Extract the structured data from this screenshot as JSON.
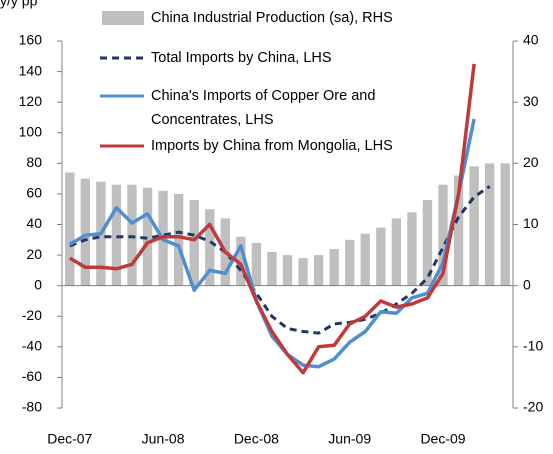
{
  "chart_data": {
    "type": "bar-line",
    "y_label": "y/y pp",
    "categories": [
      "Dec-07",
      null,
      null,
      null,
      null,
      null,
      "Jun-08",
      null,
      null,
      null,
      null,
      null,
      "Dec-08",
      null,
      null,
      null,
      null,
      null,
      "Jun-09",
      null,
      null,
      null,
      null,
      null,
      "Dec-09",
      null,
      null,
      null,
      null
    ],
    "series": [
      {
        "name": "China Industrial Production (sa), RHS",
        "kind": "bar",
        "axis": "y2",
        "color": "#bfbfbf",
        "values": [
          18.5,
          17.5,
          17,
          16.5,
          16.5,
          16,
          15.5,
          15,
          14,
          12.5,
          11,
          8,
          7,
          5.5,
          5,
          4.5,
          5,
          6,
          7.5,
          8.5,
          9.5,
          11,
          12,
          14,
          16.5,
          18,
          19.5,
          20,
          20
        ]
      },
      {
        "name": "Total Imports by China, LHS",
        "kind": "line",
        "dash": true,
        "color": "#1f3864",
        "values": [
          26,
          30,
          32,
          32,
          32,
          31,
          33,
          35,
          33,
          29,
          22,
          10,
          -5,
          -20,
          -28,
          -30,
          -31,
          -25,
          -24,
          -22,
          -18,
          -12,
          -5,
          5,
          25,
          45,
          58,
          65,
          null
        ]
      },
      {
        "name": "China's Imports of Copper Ore and Concentrates, LHS",
        "kind": "line",
        "color": "#4f8fd0",
        "values": [
          27,
          33,
          34,
          51,
          41,
          47,
          30,
          26,
          -3,
          10,
          8,
          26,
          -10,
          -33,
          -45,
          -52,
          -53,
          -48,
          -37,
          -30,
          -17,
          -18,
          -8,
          -5,
          15,
          60,
          109,
          null,
          null
        ]
      },
      {
        "name": "Imports by China from Mongolia, LHS",
        "kind": "line",
        "color": "#c0393b",
        "values": [
          18,
          12,
          12,
          11,
          14,
          28,
          32,
          32,
          30,
          40,
          22,
          14,
          -10,
          -30,
          -45,
          -57,
          -40,
          -39,
          -25,
          -20,
          -10,
          -14,
          -12,
          -8,
          8,
          60,
          145,
          null,
          null
        ]
      }
    ],
    "ylim": [
      -80,
      160
    ],
    "yticks": [
      -80,
      -60,
      -40,
      -20,
      0,
      20,
      40,
      60,
      80,
      100,
      120,
      140,
      160
    ],
    "y2lim": [
      -20,
      40
    ],
    "y2ticks": [
      -20,
      -10,
      0,
      10,
      20,
      30,
      40
    ]
  }
}
